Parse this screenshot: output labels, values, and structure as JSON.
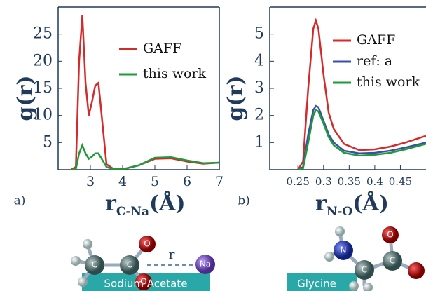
{
  "chart_data": [
    {
      "type": "line",
      "panel": "a)",
      "ylabel": "g(r)",
      "xlabel": "r",
      "xlabel_sub": "C-Na",
      "xlabel_unit": "(Å)",
      "xlim": [
        2,
        7
      ],
      "ylim": [
        0,
        30
      ],
      "xticks": [
        3,
        4,
        5,
        6,
        7
      ],
      "yticks": [
        5,
        10,
        15,
        20,
        25
      ],
      "x": [
        2.4,
        2.55,
        2.65,
        2.75,
        2.85,
        2.95,
        3.05,
        3.15,
        3.25,
        3.35,
        3.5,
        3.7,
        4.0,
        4.5,
        5.0,
        5.5,
        6.0,
        6.5,
        7.0
      ],
      "series": [
        {
          "name": "GAFF",
          "color": "#d42a2a",
          "values": [
            0,
            0.5,
            20,
            28.5,
            16,
            10,
            12.5,
            15.5,
            16,
            10,
            1,
            0.2,
            0.1,
            0.8,
            2.0,
            2.1,
            1.5,
            1.1,
            1.3
          ]
        },
        {
          "name": "this work",
          "color": "#1f9a3a",
          "values": [
            0,
            0.1,
            3,
            4.5,
            3,
            2,
            2.4,
            3,
            3,
            2,
            0.5,
            0.1,
            0.05,
            0.8,
            2.2,
            2.3,
            1.7,
            1.2,
            1.3
          ]
        }
      ]
    },
    {
      "type": "line",
      "panel": "b)",
      "ylabel": "g(r)",
      "xlabel": "r",
      "xlabel_sub": "N-O",
      "xlabel_unit": "(Å)",
      "xlim": [
        0.195,
        0.5
      ],
      "ylim": [
        0,
        6
      ],
      "xticks": [
        0.25,
        0.3,
        0.35,
        0.4,
        0.45
      ],
      "yticks": [
        1,
        2,
        3,
        4,
        5
      ],
      "x": [
        0.25,
        0.26,
        0.27,
        0.28,
        0.285,
        0.29,
        0.3,
        0.31,
        0.32,
        0.34,
        0.37,
        0.4,
        0.43,
        0.46,
        0.5
      ],
      "series": [
        {
          "name": "GAFF",
          "color": "#d42a2a",
          "values": [
            0,
            0.3,
            3,
            5.2,
            5.5,
            5.2,
            3.5,
            2.1,
            1.5,
            0.95,
            0.72,
            0.75,
            0.85,
            1.0,
            1.25
          ]
        },
        {
          "name": "ref: a",
          "color": "#3a4fa8",
          "values": [
            0,
            0.1,
            1.3,
            2.2,
            2.35,
            2.3,
            1.8,
            1.3,
            1.0,
            0.7,
            0.6,
            0.62,
            0.7,
            0.82,
            1.0
          ]
        },
        {
          "name": "this work",
          "color": "#1f9a3a",
          "values": [
            0,
            0.05,
            1.0,
            2.0,
            2.2,
            2.15,
            1.7,
            1.2,
            0.9,
            0.62,
            0.52,
            0.55,
            0.62,
            0.75,
            0.95
          ]
        }
      ]
    }
  ],
  "molecules": [
    {
      "label": "Sodium Acetate",
      "atoms": [
        "C",
        "C",
        "O",
        "O",
        "Na"
      ],
      "bond_label": "r"
    },
    {
      "label": "Glycine",
      "atoms": [
        "N",
        "C",
        "C",
        "O"
      ]
    }
  ]
}
